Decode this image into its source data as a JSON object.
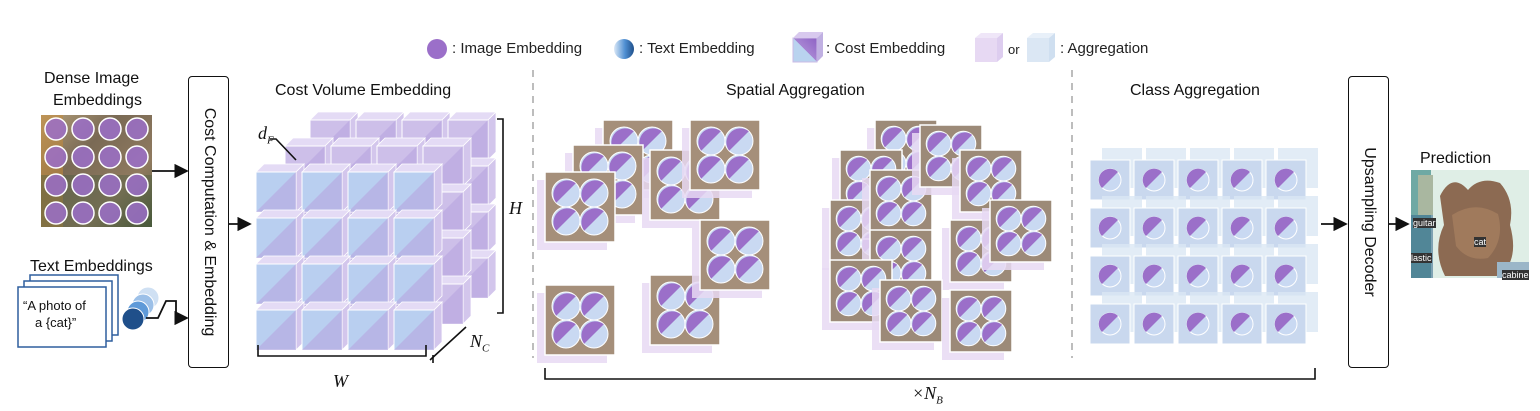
{
  "legend": {
    "image_embedding": ": Image Embedding",
    "text_embedding": ": Text Embedding",
    "cost_embedding": ": Cost Embedding",
    "or": "or",
    "aggregation": ": Aggregation"
  },
  "left": {
    "dense_title_line1": "Dense Image",
    "dense_title_line2": "Embeddings",
    "text_title": "Text Embeddings",
    "prompt_line1": "“A photo of",
    "prompt_line2": "a {cat}”"
  },
  "blocks": {
    "cost_computation": "Cost Computation & Embedding",
    "upsampling_decoder": "Upsampling Decoder"
  },
  "sections": {
    "cost_volume": "Cost Volume Embedding",
    "spatial": "Spatial Aggregation",
    "class": "Class Aggregation",
    "prediction": "Prediction"
  },
  "dims": {
    "d": "d",
    "d_sub": "F",
    "h": "H",
    "w": "W",
    "n": "N",
    "n_sub": "C",
    "times": "×N",
    "times_sub": "B"
  },
  "prediction_labels": {
    "guitar": "guitar",
    "cat": "cat",
    "plastic": "lastic",
    "cabinet": "cabine"
  },
  "colors": {
    "purple": "#9b6fc9",
    "blue": "#4a86c8",
    "light_purple": "#e7d9f3",
    "light_blue": "#dbe7f4",
    "cube_face": "#b8a7dc",
    "arrow": "#111111"
  }
}
